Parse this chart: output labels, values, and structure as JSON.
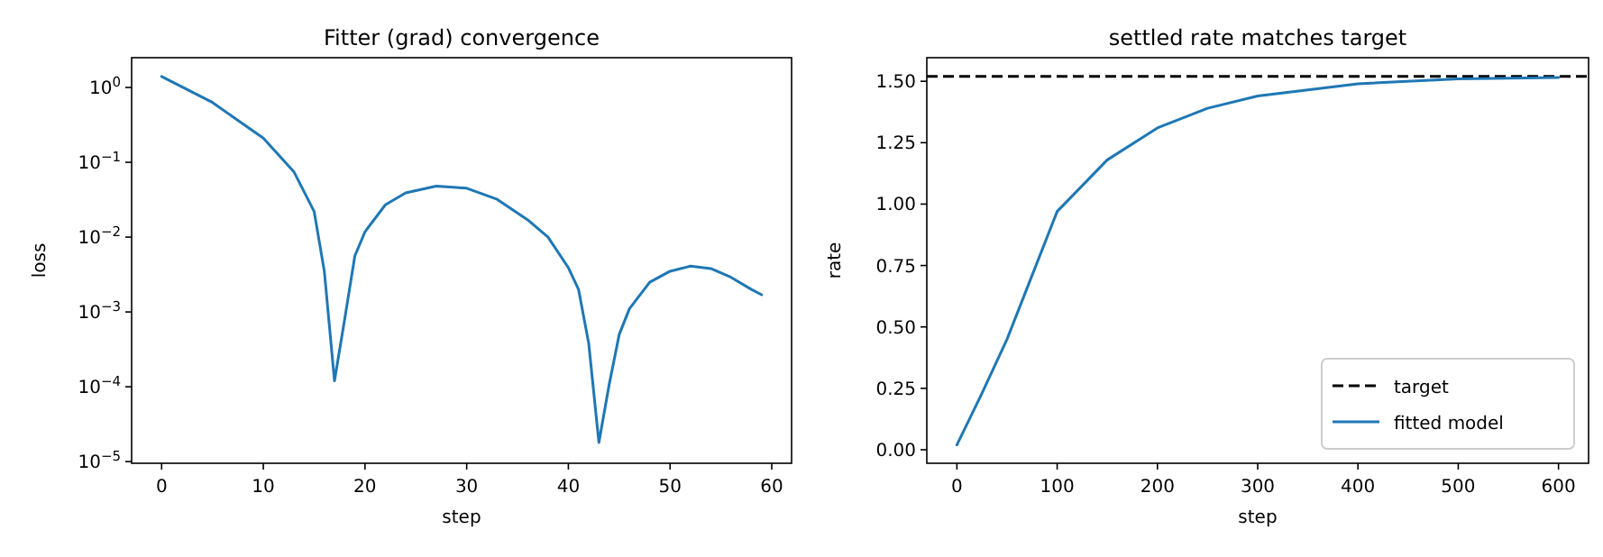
{
  "chart_data": [
    {
      "type": "line",
      "title": "Fitter (grad) convergence",
      "xlabel": "step",
      "ylabel": "loss",
      "log": true,
      "grid": false,
      "marker": "none",
      "line_style": "solid",
      "x": [
        0,
        5,
        10,
        13,
        15,
        16,
        17,
        18,
        19,
        20,
        22,
        24,
        27,
        30,
        33,
        36,
        38,
        40,
        41,
        42,
        43,
        44,
        45,
        46,
        48,
        50,
        52,
        54,
        56,
        58,
        59
      ],
      "series": [
        {
          "color": "#1f77b4",
          "values": [
            1.4,
            0.63,
            0.21,
            0.075,
            0.022,
            0.0035,
            0.00012,
            0.0008,
            0.0056,
            0.0118,
            0.027,
            0.039,
            0.048,
            0.045,
            0.032,
            0.017,
            0.01,
            0.0039,
            0.002,
            0.00038,
            1.8e-05,
            0.000105,
            0.0005,
            0.0011,
            0.0025,
            0.0035,
            0.0041,
            0.0038,
            0.0029,
            0.002,
            0.0017
          ]
        }
      ],
      "xlim": [
        -2.95,
        61.95
      ],
      "xticks": [
        0,
        10,
        20,
        30,
        40,
        50,
        60
      ],
      "ylim": [
        9.5e-06,
        2.5
      ],
      "yticks": [
        {
          "value": 1e-05,
          "label": "10$^{−5}$"
        },
        {
          "value": 0.0001,
          "label": "10$^{−4}$"
        },
        {
          "value": 0.001,
          "label": "10$^{−3}$"
        },
        {
          "value": 0.01,
          "label": "10$^{−2}$"
        },
        {
          "value": 0.1,
          "label": "10$^{−1}$"
        },
        {
          "value": 1,
          "label": "10$^{0}$"
        }
      ]
    },
    {
      "type": "line",
      "title": "settled rate matches target",
      "xlabel": "step",
      "ylabel": "rate",
      "grid": false,
      "marker": "none",
      "line_style": "solid",
      "legend": "bottom right",
      "x": [
        0,
        25,
        50,
        100,
        150,
        200,
        250,
        300,
        400,
        500,
        600
      ],
      "series": [
        {
          "name": "fitted model",
          "color": "#1f77b4",
          "values": [
            0.02,
            0.23,
            0.45,
            0.97,
            1.18,
            1.31,
            1.39,
            1.44,
            1.49,
            1.51,
            1.515
          ]
        }
      ],
      "ref_lines": [
        {
          "axis": "y",
          "value": 1.52,
          "label": "target",
          "color": "#000000",
          "line_style": "dashed"
        }
      ],
      "xlim": [
        -30,
        630
      ],
      "xticks": [
        0,
        100,
        200,
        300,
        400,
        500,
        600
      ],
      "ylim": [
        -0.055,
        1.596
      ],
      "yticks": [
        {
          "value": 0,
          "label": "0.00"
        },
        {
          "value": 0.25,
          "label": "0.25"
        },
        {
          "value": 0.5,
          "label": "0.50"
        },
        {
          "value": 0.75,
          "label": "0.75"
        },
        {
          "value": 1,
          "label": "1.00"
        },
        {
          "value": 1.25,
          "label": "1.25"
        },
        {
          "value": 1.5,
          "label": "1.50"
        }
      ]
    }
  ]
}
